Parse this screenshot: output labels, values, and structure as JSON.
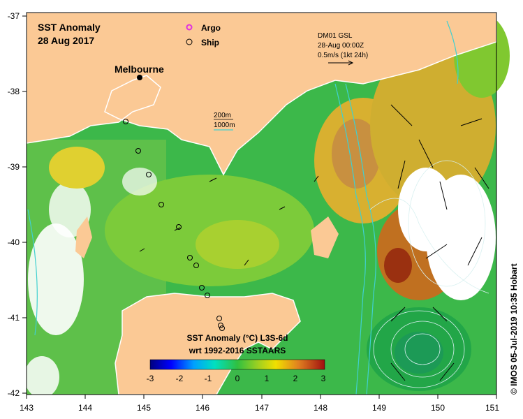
{
  "title": {
    "line1": "SST Anomaly",
    "line2": "28 Aug 2017"
  },
  "legend": {
    "argo": "Argo",
    "ship": "Ship"
  },
  "place_label": "Melbourne",
  "depth_legend": {
    "contour1": "200m",
    "contour2": "1000m"
  },
  "current_info": {
    "line1": "DM01 GSL",
    "line2": "28-Aug 00:00Z",
    "line3": "0.5m/s (1kt 24h)"
  },
  "colorbar": {
    "title1": "SST Anomaly (°C) L3S-6d",
    "title2": "wrt 1992-2016 SSTAARS",
    "ticks": [
      "-3",
      "-2",
      "-1",
      "0",
      "1",
      "2",
      "3"
    ]
  },
  "credit": "© IMOS 05-Jul-2019 10:35 Hobart",
  "axes": {
    "x_ticks": [
      "143",
      "144",
      "145",
      "146",
      "147",
      "148",
      "149",
      "150",
      "151"
    ],
    "y_ticks": [
      "-37",
      "-38",
      "-39",
      "-40",
      "-41",
      "-42"
    ]
  },
  "colors": {
    "land": "#fbc995",
    "no_data": "#ffffff",
    "ocean_main": "#3cb84a",
    "warm": "#e0a020",
    "hot": "#b03010",
    "contour": "#40d0d0"
  }
}
